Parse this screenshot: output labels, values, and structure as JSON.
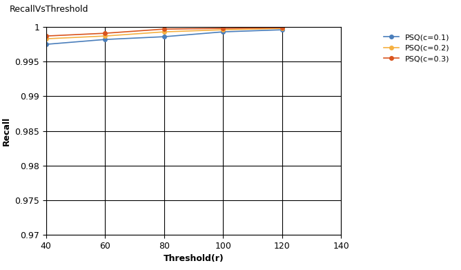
{
  "chart_data": {
    "type": "line",
    "title": "RecallVsThreshold",
    "x_label": "Threshold(r)",
    "y_label": "Recall",
    "x": [
      40,
      60,
      80,
      100,
      120
    ],
    "series": [
      {
        "name": "PSQ(c=0.1)",
        "color": "#4a7ebb",
        "marker": "o",
        "values": [
          0.9975,
          0.9982,
          0.9986,
          0.9993,
          0.9996
        ]
      },
      {
        "name": "PSQ(c=0.2)",
        "color": "#f5b041",
        "marker": "o",
        "values": [
          0.9983,
          0.9987,
          0.9993,
          0.9996,
          0.9998
        ]
      },
      {
        "name": "PSQ(c=0.3)",
        "color": "#d9541e",
        "marker": "o",
        "values": [
          0.9987,
          0.9991,
          0.9997,
          0.9998,
          0.9999
        ]
      }
    ],
    "xlim": [
      40,
      140
    ],
    "xticks": [
      40,
      60,
      80,
      100,
      120,
      140
    ],
    "ylim": [
      0.97,
      1
    ],
    "yticks": [
      0.97,
      0.975,
      0.98,
      0.985,
      0.99,
      0.995,
      1
    ],
    "grid": true,
    "legend": "upper right"
  }
}
